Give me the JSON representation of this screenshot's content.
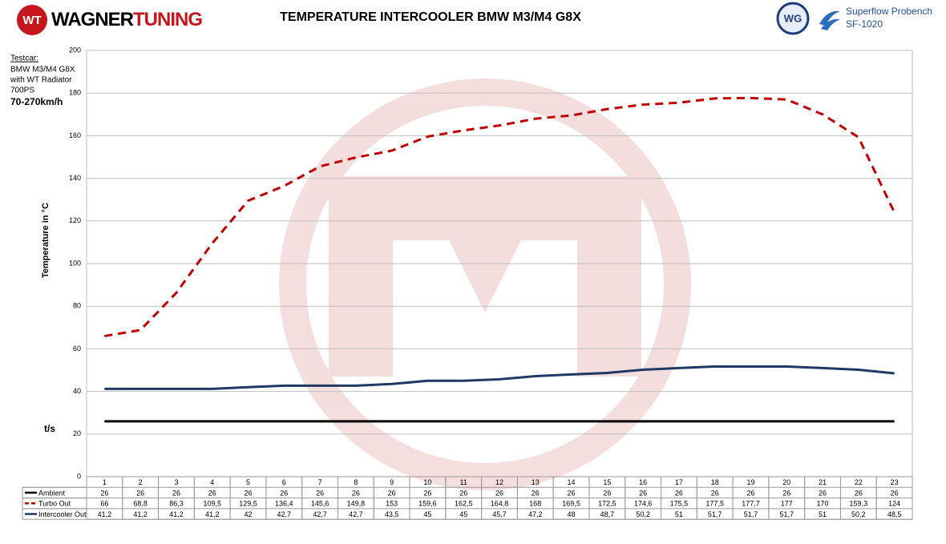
{
  "header": {
    "logo_mark": "WT",
    "brand_1": "WAGNER",
    "brand_2": "TUNING",
    "bench_mark": "WG",
    "bench_1": "Superflow Probench",
    "bench_2": "SF-1020"
  },
  "notes": {
    "testcar": "Testcar:",
    "car": "BMW M3/M4 G8X",
    "radiator": "with WT Radiator",
    "power": "700PS",
    "speed": "70-270km/h"
  },
  "chart_data": {
    "type": "line",
    "title": "TEMPERATURE INTERCOOLER BMW M3/M4 G8X",
    "y_label": "Temperature in °C",
    "x_label": "t/s",
    "x": [
      1,
      2,
      3,
      4,
      5,
      6,
      7,
      8,
      9,
      10,
      11,
      12,
      13,
      14,
      15,
      16,
      17,
      18,
      19,
      20,
      21,
      22,
      23
    ],
    "xlim": [
      0.5,
      23.5
    ],
    "ylim": [
      0,
      200
    ],
    "yticks": [
      0,
      20,
      40,
      60,
      80,
      100,
      120,
      140,
      160,
      180,
      200
    ],
    "grid": true,
    "series": [
      {
        "name": "Ambient",
        "color": "#000000",
        "line_style": "solid",
        "values": [
          26,
          26,
          26,
          26,
          26,
          26,
          26,
          26,
          26,
          26,
          26,
          26,
          26,
          26,
          26,
          26,
          26,
          26,
          26,
          26,
          26,
          26,
          26
        ]
      },
      {
        "name": "Turbo Out",
        "color": "#c00000",
        "line_style": "dashed",
        "values": [
          66,
          68.8,
          86.3,
          109.5,
          129.5,
          136.4,
          145.6,
          149.8,
          153,
          159.6,
          162.5,
          164.8,
          168,
          169.5,
          172.5,
          174.6,
          175.5,
          177.5,
          177.7,
          177,
          170,
          159.3,
          124
        ],
        "value_labels": [
          "66",
          "68,8",
          "86,3",
          "109,5",
          "129,5",
          "136,4",
          "145,6",
          "149,8",
          "153",
          "159,6",
          "162,5",
          "164,8",
          "168",
          "169,5",
          "172,5",
          "174,6",
          "175,5",
          "177,5",
          "177,7",
          "177",
          "170",
          "159,3",
          "124"
        ]
      },
      {
        "name": "Intercooler Out",
        "color": "#1f3864",
        "line_style": "solid",
        "values": [
          41.2,
          41.2,
          41.2,
          41.2,
          42,
          42.7,
          42.7,
          42.7,
          43.5,
          45,
          45,
          45.7,
          47.2,
          48,
          48.7,
          50.2,
          51,
          51.7,
          51.7,
          51.7,
          51,
          50.2,
          48.5
        ],
        "value_labels": [
          "41,2",
          "41,2",
          "41,2",
          "41,2",
          "42",
          "42,7",
          "42,7",
          "42,7",
          "43,5",
          "45",
          "45",
          "45,7",
          "47,2",
          "48",
          "48,7",
          "50,2",
          "51",
          "51,7",
          "51,7",
          "51,7",
          "51",
          "50,2",
          "48,5"
        ]
      }
    ]
  }
}
